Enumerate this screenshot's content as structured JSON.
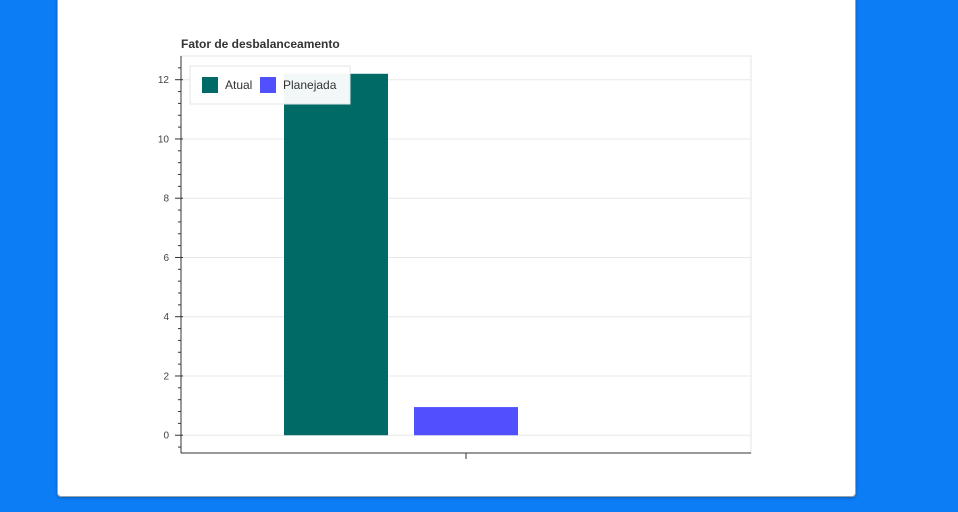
{
  "chart_data": {
    "type": "bar",
    "title": "Fator de desbalanceamento",
    "xlabel": "",
    "ylabel": "",
    "ylim": [
      -0.6,
      12.8
    ],
    "yticks": [
      0,
      2,
      4,
      6,
      8,
      10,
      12
    ],
    "grid": true,
    "legend": "top-left",
    "categories": [
      ""
    ],
    "series": [
      {
        "name": "Atual",
        "values": [
          12.2
        ],
        "color": "#006b66"
      },
      {
        "name": "Planejada",
        "values": [
          0.95
        ],
        "color": "#5050ff"
      }
    ]
  }
}
